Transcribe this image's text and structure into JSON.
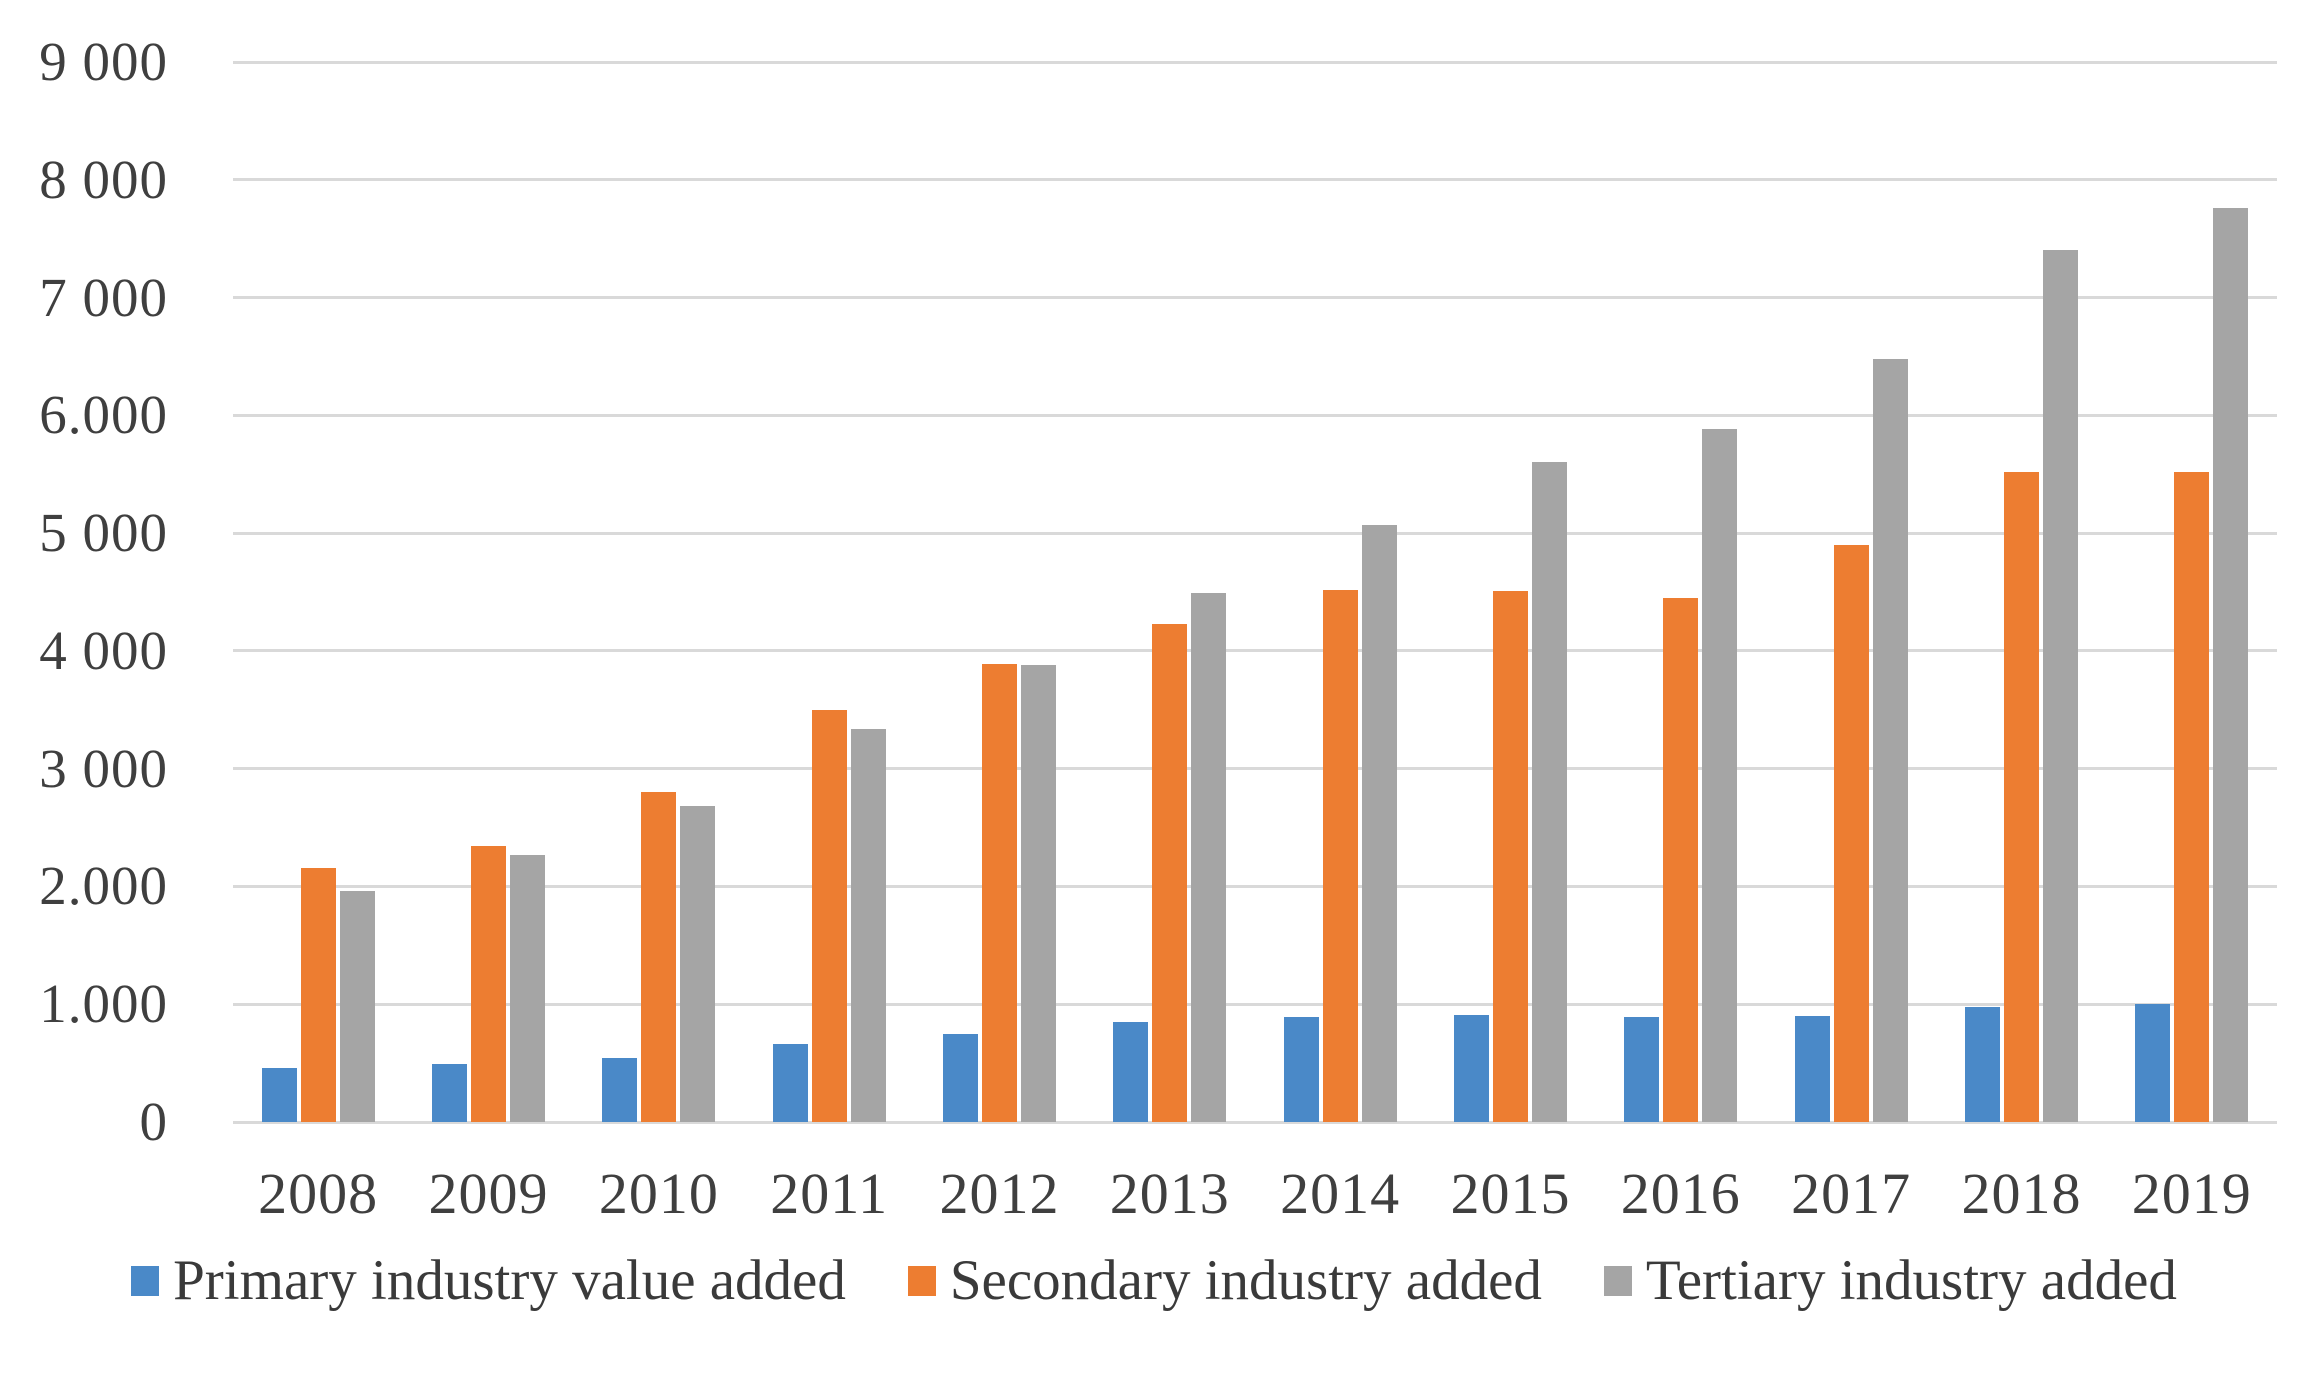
{
  "chart_data": {
    "type": "bar",
    "title": "",
    "xlabel": "",
    "ylabel": "",
    "categories": [
      "2008",
      "2009",
      "2010",
      "2011",
      "2012",
      "2013",
      "2014",
      "2015",
      "2016",
      "2017",
      "2018",
      "2019"
    ],
    "series": [
      {
        "name": "Primary industry value added",
        "color": "#4a89c8",
        "values": [
          455,
          490,
          545,
          665,
          750,
          850,
          895,
          910,
          895,
          900,
          980,
          1005
        ]
      },
      {
        "name": "Secondary industry added",
        "color": "#ed7d31",
        "values": [
          2160,
          2345,
          2800,
          3500,
          3890,
          4230,
          4520,
          4510,
          4450,
          4900,
          5520,
          5520
        ]
      },
      {
        "name": "Tertiary industry added",
        "color": "#a5a5a5",
        "values": [
          1960,
          2270,
          2680,
          3340,
          3880,
          4490,
          5070,
          5600,
          5880,
          6480,
          7400,
          7760
        ]
      }
    ],
    "ylim": [
      0,
      9000
    ],
    "ytick_step": 1000,
    "ytick_labels": [
      "0",
      "1.000",
      "2.000",
      "3 000",
      "4 000",
      "5 000",
      "6.000",
      "7 000",
      "8 000",
      "9 000"
    ],
    "grid": "horizontal",
    "legend_position": "bottom",
    "colors": {
      "gridline": "#d9d9d9",
      "axis_text": "#3f3f3f",
      "legend_text": "#3a3a3a",
      "background": "#ffffff"
    }
  }
}
